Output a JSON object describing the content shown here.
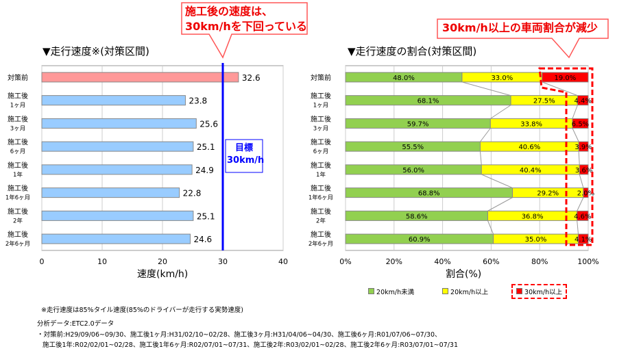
{
  "callout_left": {
    "line1": "施工後の速度は、",
    "line2": "30km/hを下回っている"
  },
  "callout_right": {
    "text": "30km/h以上の車両割合が減少"
  },
  "colors": {
    "before_bar": "#ff9999",
    "after_bar": "#99ccff",
    "target_line": "#0000ff",
    "lt20": "#92d050",
    "20to30": "#ffff00",
    "ge30": "#ff0000",
    "highlight": "#ff0000"
  },
  "chart_data": [
    {
      "type": "bar",
      "orientation": "horizontal",
      "title": "▼走行速度※(対策区間)",
      "xlabel": "速度(km/h)",
      "xlim": [
        0,
        40
      ],
      "xticks": [
        0,
        10,
        20,
        30,
        40
      ],
      "categories": [
        "対策前",
        "施工後\n1ヶ月",
        "施工後\n3ヶ月",
        "施工後\n6ヶ月",
        "施工後\n1年",
        "施工後\n1年6ヶ月",
        "施工後\n2年",
        "施工後\n2年6ヶ月"
      ],
      "values": [
        32.6,
        23.8,
        25.6,
        25.1,
        24.9,
        22.8,
        25.1,
        24.6
      ],
      "target": {
        "value": 30,
        "label_line1": "目標",
        "label_line2": "30km/h"
      },
      "grid": true
    },
    {
      "type": "bar",
      "orientation": "horizontal",
      "stacked": true,
      "title": "▼走行速度の割合(対策区間)",
      "xlabel": "割合(%)",
      "xlim": [
        0,
        100
      ],
      "xticks": [
        "0%",
        "20%",
        "40%",
        "60%",
        "80%",
        "100%"
      ],
      "categories": [
        "対策前",
        "施工後\n1ヶ月",
        "施工後\n3ヶ月",
        "施工後\n6ヶ月",
        "施工後\n1年",
        "施工後\n1年6ヶ月",
        "施工後\n2年",
        "施工後\n2年6ヶ月"
      ],
      "series": [
        {
          "name": "20km/h未満",
          "values": [
            48.0,
            68.1,
            59.7,
            55.5,
            56.0,
            68.8,
            58.6,
            60.9
          ]
        },
        {
          "name": "20km/h以上",
          "values": [
            33.0,
            27.5,
            33.8,
            40.6,
            40.4,
            29.2,
            36.8,
            35.0
          ]
        },
        {
          "name": "30km/h以上",
          "values": [
            19.0,
            4.4,
            6.5,
            3.9,
            3.6,
            2.0,
            4.6,
            4.1
          ]
        }
      ],
      "legend": "bottom",
      "grid": true
    }
  ],
  "notes": {
    "footnote": "※走行速度は85%タイル速度(85%のドライバーが走行する実勢速度)",
    "data_source": "分析データ:ETC2.0データ",
    "periods_line1": "・対策前:H29/09/06~09/30、施工後1ヶ月:H31/02/10~02/28、施工後3ヶ月:H31/04/06~04/30、施工後6ヶ月:R01/07/06~07/30、",
    "periods_line2": "施工後1年:R02/02/01~02/28、施工後1年6ヶ月:R02/07/01~07/31、施工後2年:R03/02/01~02/28、施工後2年6ヶ月:R03/07/01~07/31"
  }
}
